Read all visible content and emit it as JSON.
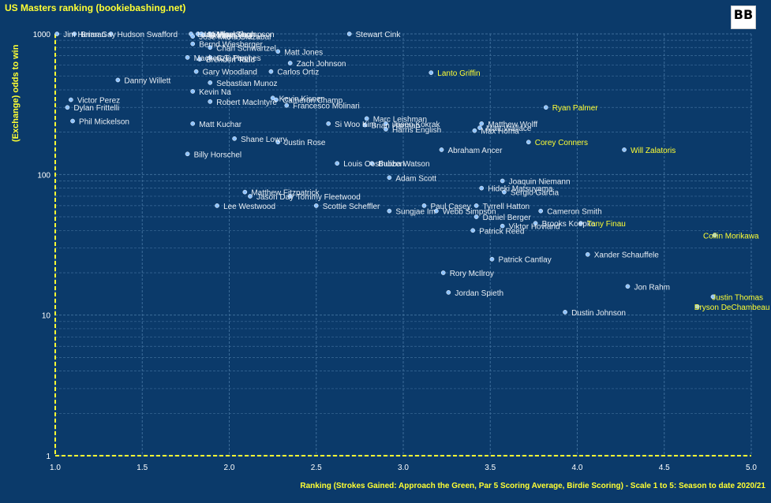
{
  "chart_data": {
    "type": "scatter",
    "title": "US Masters ranking   (bookiebashing.net)",
    "xlabel": "Ranking (Strokes Gained: Approach the Green, Par 5 Scoring Average, Birdie Scoring) - Scale 1 to 5: Season to date 2020/21",
    "ylabel": "(Exchange) odds to win",
    "xlim": [
      1.0,
      5.0
    ],
    "ylim": [
      1,
      1000
    ],
    "yscale": "log",
    "grid": true,
    "x_ticks": [
      "1.0",
      "1.5",
      "2.0",
      "2.5",
      "3.0",
      "3.5",
      "4.0",
      "4.5",
      "5.0"
    ],
    "y_ticks": [
      "1",
      "10",
      "100",
      "1000"
    ],
    "colors": {
      "background": "#0b3a6a",
      "grid": "#3c6c99",
      "point": "#8ec3ff",
      "label": "#e8eef4",
      "highlight": "#ffff33"
    },
    "logo_text": "BB",
    "points": [
      {
        "name": "Brian Gay",
        "x": 1.11,
        "y": 1000,
        "highlight": false
      },
      {
        "name": "Jim Herman",
        "x": 1.01,
        "y": 1000,
        "highlight": false
      },
      {
        "name": "Hudson Swafford",
        "x": 1.32,
        "y": 1000,
        "highlight": false
      },
      {
        "name": "Larry Mize",
        "x": 1.78,
        "y": 1000,
        "highlight": false
      },
      {
        "name": "Ian Woosnam",
        "x": 1.82,
        "y": 1000,
        "highlight": false
      },
      {
        "name": "Michael Thompson",
        "x": 1.84,
        "y": 1000,
        "highlight": false
      },
      {
        "name": "Vijay Singh",
        "x": 1.89,
        "y": 1000,
        "highlight": false
      },
      {
        "name": "Jose Maria Olazabal",
        "x": 1.79,
        "y": 960,
        "highlight": false
      },
      {
        "name": "Sandy Lyle",
        "x": 1.85,
        "y": 980,
        "highlight": false
      },
      {
        "name": "Stewart Cink",
        "x": 2.69,
        "y": 1000,
        "highlight": false
      },
      {
        "name": "Bernd Wiesberger",
        "x": 1.79,
        "y": 850,
        "highlight": false
      },
      {
        "name": "Charl Schwartzel",
        "x": 1.89,
        "y": 800,
        "highlight": false
      },
      {
        "name": "Matt Jones",
        "x": 2.28,
        "y": 750,
        "highlight": false
      },
      {
        "name": "Mackenzie Hughes",
        "x": 1.76,
        "y": 680,
        "highlight": false
      },
      {
        "name": "C.T. Pan",
        "x": 1.89,
        "y": 680,
        "highlight": false
      },
      {
        "name": "Brendon Todd",
        "x": 1.83,
        "y": 660,
        "highlight": false
      },
      {
        "name": "Zach Johnson",
        "x": 2.35,
        "y": 620,
        "highlight": false
      },
      {
        "name": "Gary Woodland",
        "x": 1.81,
        "y": 540,
        "highlight": false
      },
      {
        "name": "Carlos Ortiz",
        "x": 2.24,
        "y": 540,
        "highlight": false
      },
      {
        "name": "Lanto Griffin",
        "x": 3.16,
        "y": 530,
        "highlight": true
      },
      {
        "name": "Danny Willett",
        "x": 1.36,
        "y": 470,
        "highlight": false
      },
      {
        "name": "Sebastian Munoz",
        "x": 1.89,
        "y": 450,
        "highlight": false
      },
      {
        "name": "Kevin Na",
        "x": 1.79,
        "y": 390,
        "highlight": false
      },
      {
        "name": "Victor Perez",
        "x": 1.09,
        "y": 340,
        "highlight": false
      },
      {
        "name": "Kevin Kisner",
        "x": 2.25,
        "y": 350,
        "highlight": false
      },
      {
        "name": "Cameron Champ",
        "x": 2.27,
        "y": 340,
        "highlight": false
      },
      {
        "name": "Robert MacIntyre",
        "x": 1.89,
        "y": 330,
        "highlight": false
      },
      {
        "name": "Francesco Molinari",
        "x": 2.33,
        "y": 310,
        "highlight": false
      },
      {
        "name": "Dylan Frittelli",
        "x": 1.07,
        "y": 300,
        "highlight": false
      },
      {
        "name": "Ryan Palmer",
        "x": 3.82,
        "y": 300,
        "highlight": true
      },
      {
        "name": "Marc Leishman",
        "x": 2.79,
        "y": 250,
        "highlight": false
      },
      {
        "name": "Matthew Wolff",
        "x": 3.45,
        "y": 230,
        "highlight": false
      },
      {
        "name": "Phil Mickelson",
        "x": 1.1,
        "y": 240,
        "highlight": false
      },
      {
        "name": "Matt Kuchar",
        "x": 1.79,
        "y": 230,
        "highlight": false
      },
      {
        "name": "Si Woo Kim",
        "x": 2.57,
        "y": 230,
        "highlight": false
      },
      {
        "name": "Brian Harman",
        "x": 2.78,
        "y": 225,
        "highlight": false
      },
      {
        "name": "Jason Kokrak",
        "x": 2.9,
        "y": 230,
        "highlight": false
      },
      {
        "name": "Matt Wallace",
        "x": 3.44,
        "y": 215,
        "highlight": false
      },
      {
        "name": "Harris English",
        "x": 2.9,
        "y": 210,
        "highlight": false
      },
      {
        "name": "Max Homa",
        "x": 3.41,
        "y": 205,
        "highlight": false
      },
      {
        "name": "Shane Lowry",
        "x": 2.03,
        "y": 180,
        "highlight": false
      },
      {
        "name": "Justin Rose",
        "x": 2.28,
        "y": 170,
        "highlight": false
      },
      {
        "name": "Corey Conners",
        "x": 3.72,
        "y": 170,
        "highlight": true
      },
      {
        "name": "Abraham Ancer",
        "x": 3.22,
        "y": 150,
        "highlight": false
      },
      {
        "name": "Will Zalatoris",
        "x": 4.27,
        "y": 150,
        "highlight": true
      },
      {
        "name": "Billy Horschel",
        "x": 1.76,
        "y": 140,
        "highlight": false
      },
      {
        "name": "Louis Oosthuizen",
        "x": 2.62,
        "y": 120,
        "highlight": false
      },
      {
        "name": "Bubba Watson",
        "x": 2.82,
        "y": 120,
        "highlight": false
      },
      {
        "name": "Adam Scott",
        "x": 2.92,
        "y": 95,
        "highlight": false
      },
      {
        "name": "Joaquin Niemann",
        "x": 3.57,
        "y": 90,
        "highlight": false
      },
      {
        "name": "Matthew Fitzpatrick",
        "x": 2.09,
        "y": 75,
        "highlight": false
      },
      {
        "name": "Hideki Matsuyama",
        "x": 3.45,
        "y": 80,
        "highlight": false
      },
      {
        "name": "Sergio Garcia",
        "x": 3.58,
        "y": 75,
        "highlight": false
      },
      {
        "name": "Jason Day",
        "x": 2.12,
        "y": 70,
        "highlight": false
      },
      {
        "name": "Tommy Fleetwood",
        "x": 2.35,
        "y": 70,
        "highlight": false
      },
      {
        "name": "Lee Westwood",
        "x": 1.93,
        "y": 60,
        "highlight": false
      },
      {
        "name": "Scottie Scheffler",
        "x": 2.5,
        "y": 60,
        "highlight": false
      },
      {
        "name": "Paul Casey",
        "x": 3.12,
        "y": 60,
        "highlight": false
      },
      {
        "name": "Tyrrell Hatton",
        "x": 3.42,
        "y": 60,
        "highlight": false
      },
      {
        "name": "Cameron Smith",
        "x": 3.79,
        "y": 55,
        "highlight": false
      },
      {
        "name": "Sungjae Im",
        "x": 2.92,
        "y": 55,
        "highlight": false
      },
      {
        "name": "Webb Simpson",
        "x": 3.19,
        "y": 55,
        "highlight": false
      },
      {
        "name": "Daniel Berger",
        "x": 3.42,
        "y": 50,
        "highlight": false
      },
      {
        "name": "Brooks Koepka",
        "x": 3.76,
        "y": 45,
        "highlight": false
      },
      {
        "name": "Viktor Hovland",
        "x": 3.57,
        "y": 43,
        "highlight": false
      },
      {
        "name": "Tony Finau",
        "x": 4.02,
        "y": 45,
        "highlight": true
      },
      {
        "name": "Patrick Reed",
        "x": 3.4,
        "y": 40,
        "highlight": false
      },
      {
        "name": "Collin Morikawa",
        "x": 4.79,
        "y": 37,
        "highlight": true
      },
      {
        "name": "Xander Schauffele",
        "x": 4.06,
        "y": 27,
        "highlight": false
      },
      {
        "name": "Patrick Cantlay",
        "x": 3.51,
        "y": 25,
        "highlight": false
      },
      {
        "name": "Rory McIlroy",
        "x": 3.23,
        "y": 20,
        "highlight": false
      },
      {
        "name": "Jon Rahm",
        "x": 4.29,
        "y": 16,
        "highlight": false
      },
      {
        "name": "Jordan Spieth",
        "x": 3.26,
        "y": 14.5,
        "highlight": false
      },
      {
        "name": "Justin Thomas",
        "x": 4.78,
        "y": 13.5,
        "highlight": true
      },
      {
        "name": "Bryson DeChambeau",
        "x": 4.69,
        "y": 11.5,
        "highlight": true
      },
      {
        "name": "Dustin Johnson",
        "x": 3.93,
        "y": 10.5,
        "highlight": false
      }
    ]
  }
}
